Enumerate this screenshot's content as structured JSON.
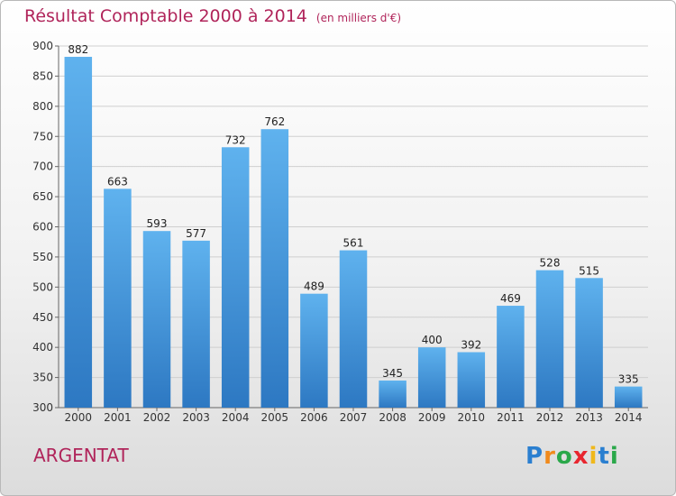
{
  "title": "Résultat Comptable 2000 à 2014",
  "subtitle": "(en milliers d'€)",
  "town": "ARGENTAT",
  "logo": {
    "letters": [
      "P",
      "r",
      "o",
      "x",
      "i",
      "t",
      "i"
    ],
    "colors": [
      "#2a7fd0",
      "#f08a1c",
      "#2aa84a",
      "#e8262f",
      "#f0b81c",
      "#2a7fd0",
      "#2aa84a"
    ]
  },
  "colors": {
    "bar_top": "#5fb2ee",
    "bar_bottom": "#2d78c2",
    "title": "#b0245a"
  },
  "chart_data": {
    "type": "bar",
    "title": "Résultat Comptable 2000 à 2014",
    "subtitle": "(en milliers d'€)",
    "xlabel": "",
    "ylabel": "",
    "ylim": [
      300,
      900
    ],
    "yticks": [
      300,
      350,
      400,
      450,
      500,
      550,
      600,
      650,
      700,
      750,
      800,
      850,
      900
    ],
    "grid": true,
    "categories": [
      "2000",
      "2001",
      "2002",
      "2003",
      "2004",
      "2005",
      "2006",
      "2007",
      "2008",
      "2009",
      "2010",
      "2011",
      "2012",
      "2013",
      "2014"
    ],
    "values": [
      882,
      663,
      593,
      577,
      732,
      762,
      489,
      561,
      345,
      400,
      392,
      469,
      528,
      515,
      335
    ]
  }
}
